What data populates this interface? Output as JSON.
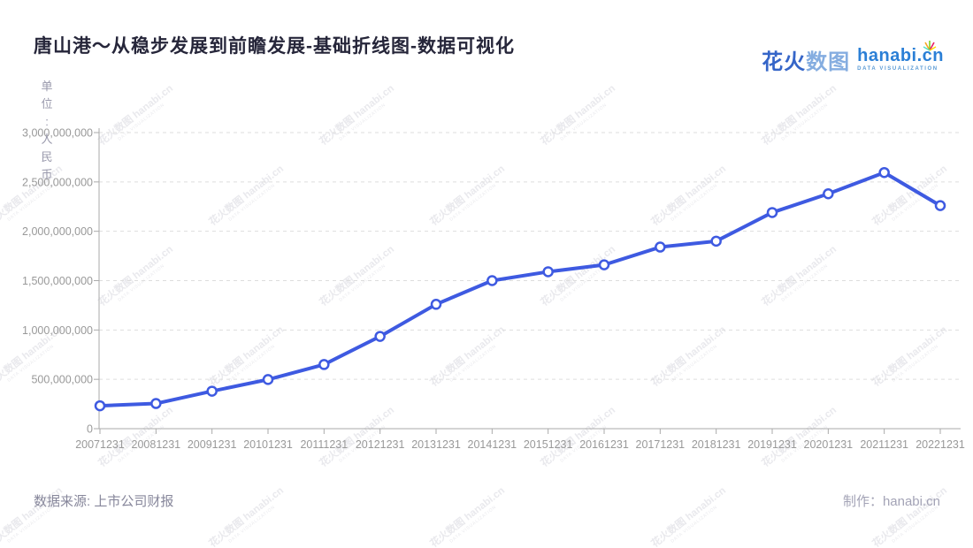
{
  "title": "唐山港～从稳步发展到前瞻发展-基础折线图-数据可视化",
  "logo": {
    "cjk_part1": "花火",
    "cjk_part2": "数图",
    "latin": "hanabi.cn",
    "subtitle": "DATA VISUALIZATION",
    "spark_colors": [
      "#f5a623",
      "#ffd700",
      "#7ed321",
      "#50e3c2",
      "#e91e63",
      "#ff5722"
    ]
  },
  "unit_label": "单\n位\n:\n人\n民\n币",
  "watermark": {
    "line1": "花火数图 hanabi.cn",
    "line2": "DATA VISUALIZATION"
  },
  "footer": {
    "source": "数据来源: 上市公司财报",
    "credit": "制作：hanabi.cn"
  },
  "colors": {
    "line": "#3E5AE1",
    "marker_fill": "#ffffff",
    "grid": "#dddddd",
    "axis": "#aaaaaa",
    "tick_label": "#999999",
    "title": "#26263a"
  },
  "chart_data": {
    "type": "line",
    "title": "唐山港～从稳步发展到前瞻发展-基础折线图-数据可视化",
    "xlabel": "",
    "ylabel": "单位:人民币",
    "categories": [
      "20071231",
      "20081231",
      "20091231",
      "20101231",
      "20111231",
      "20121231",
      "20131231",
      "20141231",
      "20151231",
      "20161231",
      "20171231",
      "20181231",
      "20191231",
      "20201231",
      "20211231",
      "20221231"
    ],
    "values": [
      232000000,
      255000000,
      380000000,
      498000000,
      650000000,
      935000000,
      1260000000,
      1500000000,
      1590000000,
      1660000000,
      1840000000,
      1900000000,
      2190000000,
      2380000000,
      2595000000,
      2260000000
    ],
    "ylim": [
      0,
      3000000000
    ],
    "ytick_step": 500000000,
    "ytick_labels": [
      "0",
      "500,000,000",
      "1,000,000,000",
      "1,500,000,000",
      "2,000,000,000",
      "2,500,000,000",
      "3,000,000,000"
    ],
    "grid": "horizontal-dashed",
    "legend": "none",
    "marker": "open-circle"
  }
}
